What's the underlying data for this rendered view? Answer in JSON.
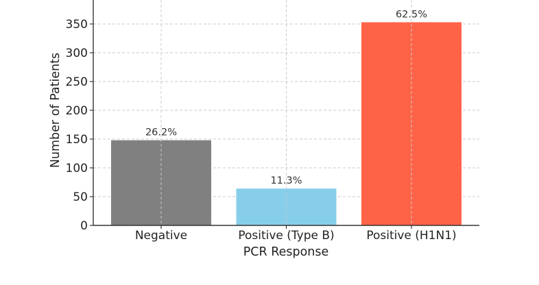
{
  "chart_data": {
    "type": "bar",
    "title": "",
    "xlabel": "PCR Response",
    "ylabel": "Number of Patients",
    "categories": [
      "Negative",
      "Positive (Type B)",
      "Positive (H1N1)"
    ],
    "values": [
      148,
      64,
      353
    ],
    "data_labels": [
      "26.2%",
      "11.3%",
      "62.5%"
    ],
    "colors": [
      "#808080",
      "#87ceeb",
      "#ff6347"
    ],
    "ylim": [
      0,
      400
    ],
    "yticks": [
      "0",
      "50",
      "100",
      "150",
      "200",
      "250",
      "300",
      "350",
      "400"
    ],
    "grid": true
  }
}
